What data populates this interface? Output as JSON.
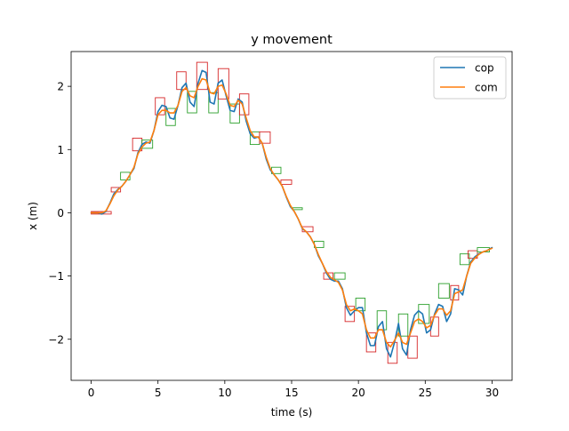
{
  "chart_data": {
    "type": "line",
    "title": "y movement",
    "xlabel": "time (s)",
    "ylabel": "x (m)",
    "xlim": [
      -1.5,
      31.5
    ],
    "ylim": [
      -2.65,
      2.55
    ],
    "xticks": [
      0,
      5,
      10,
      15,
      20,
      25,
      30
    ],
    "yticks": [
      -2,
      -1,
      0,
      1,
      2
    ],
    "grid": false,
    "legend": "top-right",
    "series": [
      {
        "name": "cop",
        "color": "#1f77b4",
        "x": [
          0,
          0.5,
          0.8,
          1.1,
          1.4,
          1.7,
          2.0,
          2.3,
          2.6,
          2.9,
          3.2,
          3.5,
          3.8,
          4.1,
          4.4,
          4.7,
          5.0,
          5.3,
          5.6,
          5.9,
          6.2,
          6.5,
          6.8,
          7.1,
          7.4,
          7.7,
          8.0,
          8.3,
          8.6,
          8.9,
          9.2,
          9.5,
          9.8,
          10.1,
          10.4,
          10.7,
          11.0,
          11.3,
          11.6,
          11.9,
          12.2,
          12.5,
          12.8,
          13.1,
          13.4,
          13.7,
          14.0,
          14.3,
          14.6,
          14.9,
          15.2,
          15.5,
          15.8,
          16.1,
          16.4,
          16.7,
          17.0,
          17.3,
          17.6,
          17.9,
          18.2,
          18.5,
          18.8,
          19.1,
          19.4,
          19.7,
          20.0,
          20.3,
          20.6,
          20.9,
          21.2,
          21.5,
          21.8,
          22.1,
          22.4,
          22.7,
          23.0,
          23.3,
          23.6,
          23.9,
          24.2,
          24.5,
          24.8,
          25.1,
          25.4,
          25.7,
          26.0,
          26.3,
          26.6,
          26.9,
          27.2,
          27.5,
          27.8,
          28.1,
          28.4,
          28.7,
          29.0,
          29.3,
          29.6,
          30.0
        ],
        "y": [
          0.0,
          0.0,
          -0.02,
          0.02,
          0.15,
          0.3,
          0.37,
          0.42,
          0.5,
          0.6,
          0.7,
          0.95,
          1.08,
          1.12,
          1.1,
          1.3,
          1.6,
          1.7,
          1.68,
          1.5,
          1.48,
          1.7,
          1.98,
          2.05,
          1.75,
          1.68,
          2.05,
          2.25,
          2.22,
          1.75,
          1.72,
          2.05,
          2.1,
          1.85,
          1.62,
          1.6,
          1.8,
          1.75,
          1.45,
          1.25,
          1.18,
          1.2,
          1.1,
          0.85,
          0.68,
          0.6,
          0.52,
          0.42,
          0.25,
          0.1,
          0.02,
          -0.1,
          -0.25,
          -0.3,
          -0.38,
          -0.5,
          -0.68,
          -0.8,
          -0.95,
          -1.05,
          -1.08,
          -1.08,
          -1.2,
          -1.5,
          -1.62,
          -1.55,
          -1.5,
          -1.5,
          -1.9,
          -2.1,
          -2.1,
          -1.8,
          -1.72,
          -2.15,
          -2.28,
          -2.05,
          -1.75,
          -2.15,
          -2.25,
          -1.85,
          -1.62,
          -1.55,
          -1.6,
          -1.9,
          -1.85,
          -1.6,
          -1.45,
          -1.48,
          -1.72,
          -1.6,
          -1.2,
          -1.22,
          -1.3,
          -1.0,
          -0.78,
          -0.7,
          -0.65,
          -0.62,
          -0.6,
          -0.55
        ]
      },
      {
        "name": "com",
        "color": "#ff7f0e",
        "x": [
          0,
          0.5,
          0.8,
          1.1,
          1.4,
          1.7,
          2.0,
          2.3,
          2.6,
          2.9,
          3.2,
          3.5,
          3.8,
          4.1,
          4.4,
          4.7,
          5.0,
          5.3,
          5.6,
          5.9,
          6.2,
          6.5,
          6.8,
          7.1,
          7.4,
          7.7,
          8.0,
          8.3,
          8.6,
          8.9,
          9.2,
          9.5,
          9.8,
          10.1,
          10.4,
          10.7,
          11.0,
          11.3,
          11.6,
          11.9,
          12.2,
          12.5,
          12.8,
          13.1,
          13.4,
          13.7,
          14.0,
          14.3,
          14.6,
          14.9,
          15.2,
          15.5,
          15.8,
          16.1,
          16.4,
          16.7,
          17.0,
          17.3,
          17.6,
          17.9,
          18.2,
          18.5,
          18.8,
          19.1,
          19.4,
          19.7,
          20.0,
          20.3,
          20.6,
          20.9,
          21.2,
          21.5,
          21.8,
          22.1,
          22.4,
          22.7,
          23.0,
          23.3,
          23.6,
          23.9,
          24.2,
          24.5,
          24.8,
          25.1,
          25.4,
          25.7,
          26.0,
          26.3,
          26.6,
          26.9,
          27.2,
          27.5,
          27.8,
          28.1,
          28.4,
          28.7,
          29.0,
          29.3,
          29.6,
          30.0
        ],
        "y": [
          0.0,
          0.0,
          0.0,
          0.03,
          0.14,
          0.27,
          0.36,
          0.42,
          0.5,
          0.6,
          0.72,
          0.93,
          1.04,
          1.1,
          1.12,
          1.3,
          1.55,
          1.62,
          1.62,
          1.58,
          1.58,
          1.7,
          1.92,
          1.98,
          1.85,
          1.82,
          2.0,
          2.12,
          2.1,
          1.9,
          1.88,
          2.0,
          2.02,
          1.88,
          1.7,
          1.68,
          1.78,
          1.72,
          1.5,
          1.3,
          1.2,
          1.2,
          1.1,
          0.88,
          0.7,
          0.6,
          0.52,
          0.42,
          0.26,
          0.12,
          0.02,
          -0.1,
          -0.24,
          -0.3,
          -0.38,
          -0.5,
          -0.66,
          -0.8,
          -0.93,
          -1.02,
          -1.06,
          -1.1,
          -1.22,
          -1.45,
          -1.55,
          -1.52,
          -1.55,
          -1.6,
          -1.85,
          -1.98,
          -1.98,
          -1.85,
          -1.85,
          -2.05,
          -2.12,
          -2.02,
          -1.9,
          -2.05,
          -2.08,
          -1.9,
          -1.72,
          -1.68,
          -1.72,
          -1.82,
          -1.78,
          -1.62,
          -1.52,
          -1.52,
          -1.62,
          -1.55,
          -1.28,
          -1.25,
          -1.22,
          -1.0,
          -0.8,
          -0.72,
          -0.66,
          -0.62,
          -0.6,
          -0.56
        ]
      }
    ],
    "footstep_boxes": [
      {
        "x0": 0.0,
        "x1": 1.5,
        "y0": -0.02,
        "y1": 0.02,
        "color": "#d62728"
      },
      {
        "x0": 1.5,
        "x1": 2.2,
        "y0": 0.33,
        "y1": 0.4,
        "color": "#d62728"
      },
      {
        "x0": 2.2,
        "x1": 2.9,
        "y0": 0.52,
        "y1": 0.64,
        "color": "#2ca02c"
      },
      {
        "x0": 3.1,
        "x1": 3.8,
        "y0": 0.98,
        "y1": 1.18,
        "color": "#d62728"
      },
      {
        "x0": 3.8,
        "x1": 4.6,
        "y0": 1.02,
        "y1": 1.15,
        "color": "#2ca02c"
      },
      {
        "x0": 4.8,
        "x1": 5.5,
        "y0": 1.55,
        "y1": 1.82,
        "color": "#d62728"
      },
      {
        "x0": 5.6,
        "x1": 6.3,
        "y0": 1.38,
        "y1": 1.65,
        "color": "#2ca02c"
      },
      {
        "x0": 6.4,
        "x1": 7.1,
        "y0": 1.95,
        "y1": 2.23,
        "color": "#d62728"
      },
      {
        "x0": 7.2,
        "x1": 7.9,
        "y0": 1.58,
        "y1": 1.92,
        "color": "#2ca02c"
      },
      {
        "x0": 7.9,
        "x1": 8.7,
        "y0": 1.95,
        "y1": 2.38,
        "color": "#d62728"
      },
      {
        "x0": 8.8,
        "x1": 9.5,
        "y0": 1.58,
        "y1": 1.9,
        "color": "#2ca02c"
      },
      {
        "x0": 9.5,
        "x1": 10.3,
        "y0": 1.8,
        "y1": 2.28,
        "color": "#d62728"
      },
      {
        "x0": 10.4,
        "x1": 11.1,
        "y0": 1.42,
        "y1": 1.72,
        "color": "#2ca02c"
      },
      {
        "x0": 11.1,
        "x1": 11.8,
        "y0": 1.55,
        "y1": 1.88,
        "color": "#d62728"
      },
      {
        "x0": 11.9,
        "x1": 12.6,
        "y0": 1.08,
        "y1": 1.28,
        "color": "#2ca02c"
      },
      {
        "x0": 12.6,
        "x1": 13.4,
        "y0": 1.1,
        "y1": 1.28,
        "color": "#d62728"
      },
      {
        "x0": 13.5,
        "x1": 14.2,
        "y0": 0.62,
        "y1": 0.72,
        "color": "#2ca02c"
      },
      {
        "x0": 14.2,
        "x1": 15.0,
        "y0": 0.45,
        "y1": 0.52,
        "color": "#d62728"
      },
      {
        "x0": 15.1,
        "x1": 15.8,
        "y0": 0.05,
        "y1": 0.08,
        "color": "#2ca02c"
      },
      {
        "x0": 15.8,
        "x1": 16.6,
        "y0": -0.3,
        "y1": -0.22,
        "color": "#d62728"
      },
      {
        "x0": 16.7,
        "x1": 17.4,
        "y0": -0.55,
        "y1": -0.45,
        "color": "#2ca02c"
      },
      {
        "x0": 17.4,
        "x1": 18.1,
        "y0": -1.05,
        "y1": -0.95,
        "color": "#d62728"
      },
      {
        "x0": 18.2,
        "x1": 19.0,
        "y0": -1.05,
        "y1": -0.95,
        "color": "#2ca02c"
      },
      {
        "x0": 19.0,
        "x1": 19.7,
        "y0": -1.72,
        "y1": -1.48,
        "color": "#d62728"
      },
      {
        "x0": 19.8,
        "x1": 20.5,
        "y0": -1.55,
        "y1": -1.35,
        "color": "#2ca02c"
      },
      {
        "x0": 20.6,
        "x1": 21.3,
        "y0": -2.2,
        "y1": -1.9,
        "color": "#d62728"
      },
      {
        "x0": 21.4,
        "x1": 22.1,
        "y0": -1.85,
        "y1": -1.55,
        "color": "#2ca02c"
      },
      {
        "x0": 22.2,
        "x1": 22.9,
        "y0": -2.38,
        "y1": -2.05,
        "color": "#d62728"
      },
      {
        "x0": 23.0,
        "x1": 23.7,
        "y0": -1.95,
        "y1": -1.6,
        "color": "#2ca02c"
      },
      {
        "x0": 23.7,
        "x1": 24.4,
        "y0": -2.3,
        "y1": -1.95,
        "color": "#d62728"
      },
      {
        "x0": 24.5,
        "x1": 25.3,
        "y0": -1.75,
        "y1": -1.45,
        "color": "#2ca02c"
      },
      {
        "x0": 25.4,
        "x1": 26.0,
        "y0": -1.95,
        "y1": -1.65,
        "color": "#d62728"
      },
      {
        "x0": 26.0,
        "x1": 26.8,
        "y0": -1.35,
        "y1": -1.12,
        "color": "#2ca02c"
      },
      {
        "x0": 26.9,
        "x1": 27.5,
        "y0": -1.38,
        "y1": -1.15,
        "color": "#d62728"
      },
      {
        "x0": 27.6,
        "x1": 28.3,
        "y0": -0.82,
        "y1": -0.65,
        "color": "#2ca02c"
      },
      {
        "x0": 28.2,
        "x1": 28.9,
        "y0": -0.72,
        "y1": -0.6,
        "color": "#d62728"
      },
      {
        "x0": 28.9,
        "x1": 29.8,
        "y0": -0.62,
        "y1": -0.55,
        "color": "#2ca02c"
      }
    ]
  }
}
